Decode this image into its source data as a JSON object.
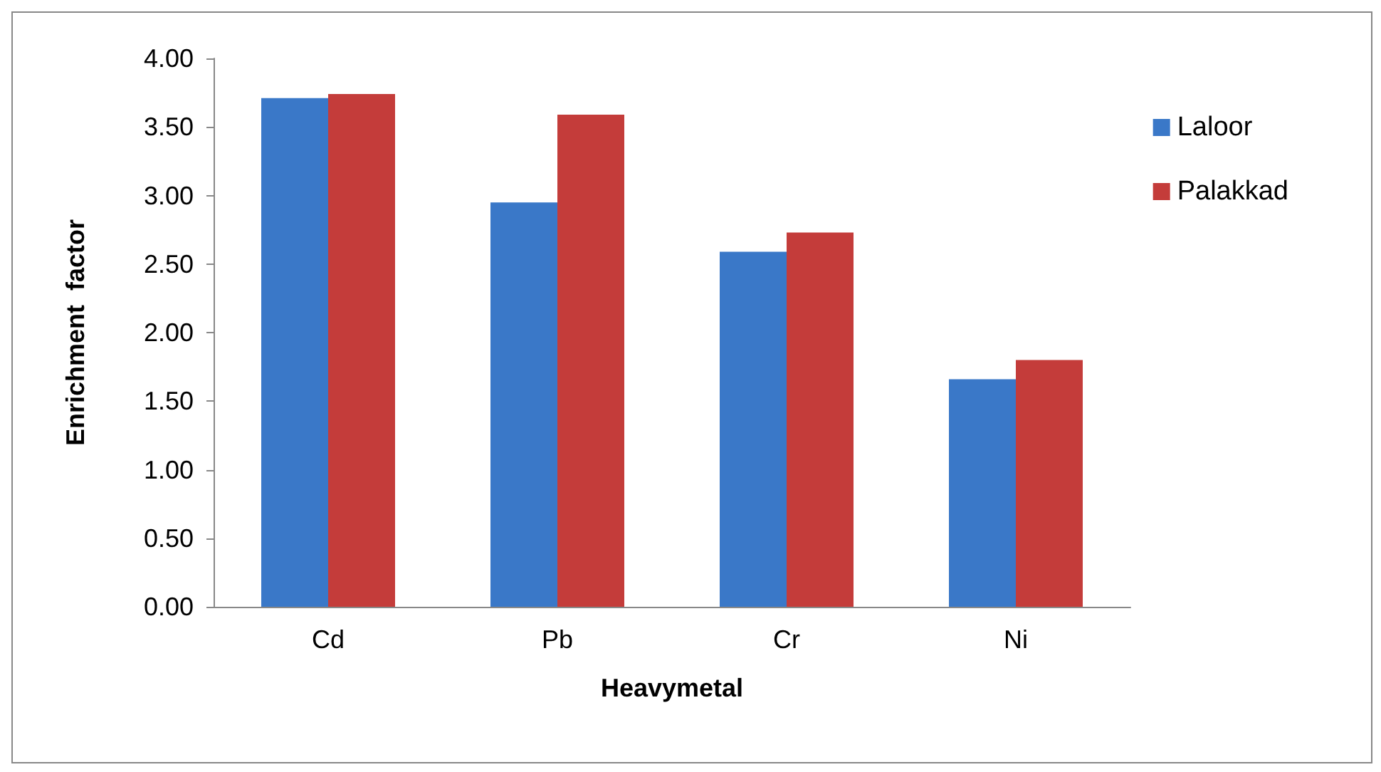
{
  "chart_data": {
    "type": "bar",
    "xlabel": "Heavymetal",
    "ylabel": "Enrichment  factor",
    "categories": [
      "Cd",
      "Pb",
      "Cr",
      "Ni"
    ],
    "series": [
      {
        "name": "Laloor",
        "color": "#3a78c8",
        "values": [
          3.71,
          2.95,
          2.59,
          1.66
        ]
      },
      {
        "name": "Palakkad",
        "color": "#c43c3a",
        "values": [
          3.74,
          3.59,
          2.73,
          1.8
        ]
      }
    ],
    "ylim": [
      0,
      4
    ],
    "yticks": [
      {
        "value": 0,
        "label": "0.00"
      },
      {
        "value": 0.5,
        "label": "0.50"
      },
      {
        "value": 1,
        "label": "1.00"
      },
      {
        "value": 1.5,
        "label": "1.50"
      },
      {
        "value": 2,
        "label": "2.00"
      },
      {
        "value": 2.5,
        "label": "2.50"
      },
      {
        "value": 3,
        "label": "3.00"
      },
      {
        "value": 3.5,
        "label": "3.50"
      },
      {
        "value": 4,
        "label": "4.00"
      }
    ],
    "grid": false,
    "legend": "right"
  }
}
